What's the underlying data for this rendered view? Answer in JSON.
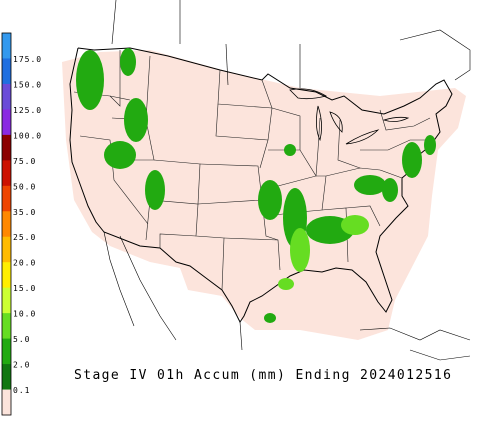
{
  "title": "Stage IV 01h Accum (mm) Ending 2024012516",
  "legend": {
    "labels": [
      "175.0",
      "150.0",
      "125.0",
      "100.0",
      "75.0",
      "50.0",
      "35.0",
      "25.0",
      "20.0",
      "15.0",
      "10.0",
      "5.0",
      "2.0",
      "0.1"
    ],
    "colors": [
      "#3399ee",
      "#1f6fe0",
      "#6a4cd8",
      "#8a2be2",
      "#8b0000",
      "#cc1100",
      "#ee4400",
      "#ff8800",
      "#ffbb00",
      "#ffee00",
      "#ccff33",
      "#66dd22",
      "#22aa11",
      "#117711",
      "#fce4dc"
    ]
  }
}
